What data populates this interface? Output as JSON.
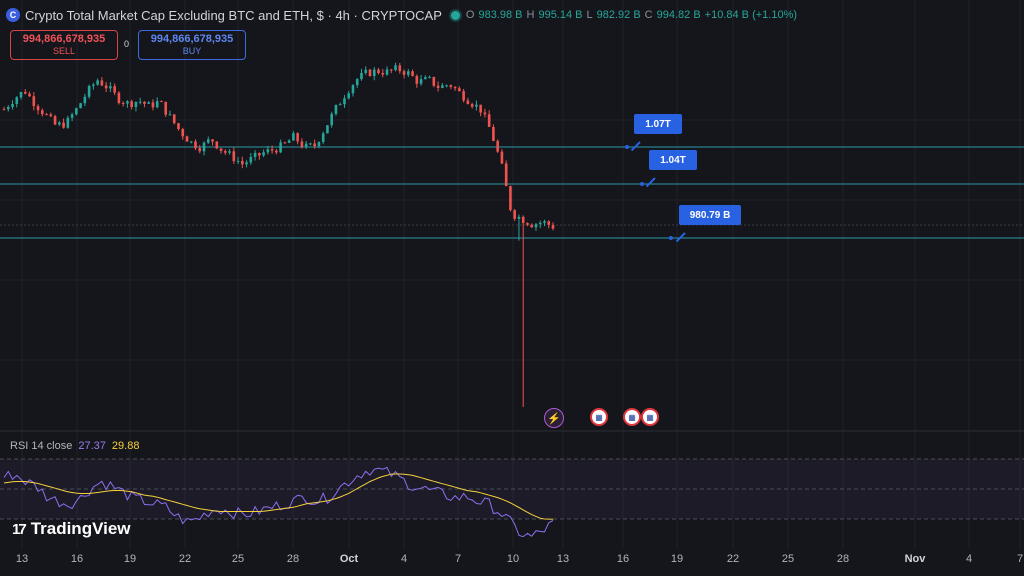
{
  "header": {
    "logo_icon": "cryptocap-logo-icon",
    "title": "Crypto Total Market Cap Excluding BTC and ETH, $ · 4h · CRYPTOCAP",
    "status_color": "#26a69a",
    "ohlc": {
      "o_label": "O",
      "o": "983.98 B",
      "h_label": "H",
      "h": "995.14 B",
      "l_label": "L",
      "l": "982.92 B",
      "c_label": "C",
      "c": "994.82 B",
      "change": "+10.84 B (+1.10%)"
    }
  },
  "trade": {
    "sell_price": "994,866,678,935",
    "sell_label": "SELL",
    "buy_price": "994,866,678,935",
    "buy_label": "BUY",
    "spread": "0"
  },
  "levels": [
    {
      "label": "1.07T",
      "value": 1070
    },
    {
      "label": "1.04T",
      "value": 1040
    },
    {
      "label": "980.79 B",
      "value": 980.79
    }
  ],
  "events": [
    {
      "icon": "lightning-icon",
      "glyph": "⚡"
    },
    {
      "icon": "us-flag-icon",
      "glyph": "▦"
    },
    {
      "icon": "us-flag-icon",
      "glyph": "▦"
    },
    {
      "icon": "us-flag-icon",
      "glyph": "▦"
    }
  ],
  "rsi": {
    "label": "RSI 14 close",
    "value": "27.37",
    "ma_value": "29.88"
  },
  "brand": "TradingView",
  "x_axis": [
    "13",
    "16",
    "19",
    "22",
    "25",
    "28",
    "Oct",
    "4",
    "7",
    "10",
    "13",
    "16",
    "19",
    "22",
    "25",
    "28",
    "Nov",
    "4",
    "7"
  ],
  "colors": {
    "up": "#26a69a",
    "down": "#ef5350",
    "level": "#2a9aa8",
    "rsi": "#8e6ff0",
    "rsi_ma": "#f5d13c",
    "label": "#2862e3"
  },
  "chart_data": {
    "type": "candlestick",
    "price_path": [
      1085,
      1095,
      1102,
      1090,
      1080,
      1070,
      1072,
      1085,
      1100,
      1112,
      1105,
      1095,
      1090,
      1093,
      1088,
      1092,
      1078,
      1065,
      1055,
      1050,
      1058,
      1048,
      1042,
      1035,
      1040,
      1045,
      1048,
      1052,
      1060,
      1050,
      1052,
      1068,
      1085,
      1100,
      1112,
      1118,
      1120,
      1119,
      1122,
      1118,
      1110,
      1112,
      1105,
      1108,
      1100,
      1092,
      1085,
      1065,
      1035,
      990,
      985,
      980,
      982,
      978
    ],
    "rsi_path": [
      58,
      60,
      55,
      52,
      45,
      42,
      40,
      43,
      50,
      55,
      52,
      48,
      44,
      42,
      40,
      38,
      32,
      28,
      30,
      35,
      37,
      35,
      33,
      34,
      36,
      38,
      40,
      42,
      45,
      42,
      44,
      50,
      55,
      60,
      63,
      62,
      60,
      56,
      52,
      50,
      48,
      46,
      44,
      45,
      42,
      40,
      35,
      28,
      20,
      18,
      22,
      27
    ],
    "rsi_ma_path": [
      54,
      55,
      55,
      54,
      52,
      50,
      48,
      47,
      47,
      48,
      49,
      49,
      48,
      46,
      45,
      43,
      41,
      39,
      37,
      36,
      35,
      35,
      35,
      35,
      35,
      36,
      37,
      38,
      40,
      41,
      42,
      44,
      47,
      51,
      55,
      58,
      60,
      60,
      59,
      57,
      55,
      53,
      51,
      49,
      48,
      46,
      44,
      41,
      37,
      33,
      30,
      29.88
    ]
  }
}
